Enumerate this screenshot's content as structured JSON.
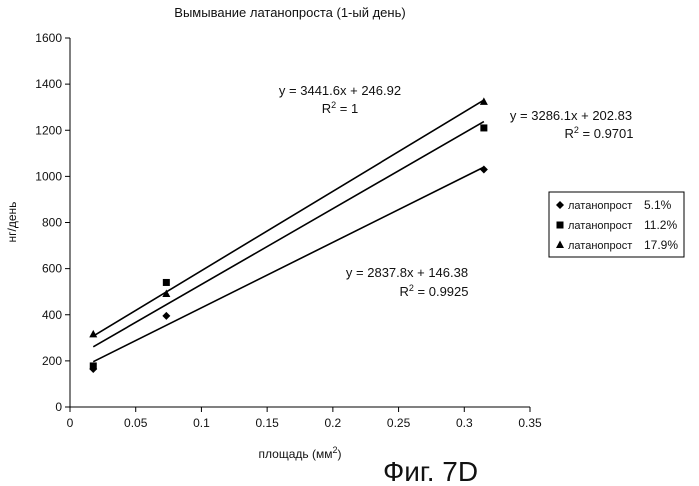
{
  "figure_label": "Фиг. 7D",
  "chart_data": {
    "type": "scatter",
    "title": "Вымывание латанопроста (1-ый день)",
    "xlabel": "площадь (мм2)",
    "ylabel": "нг/день",
    "xlim": [
      0,
      0.35
    ],
    "ylim": [
      0,
      1600
    ],
    "x_ticks": [
      "0",
      "0.05",
      "0.1",
      "0.15",
      "0.2",
      "0.25",
      "0.3",
      "0.35"
    ],
    "y_ticks": [
      "0",
      "200",
      "400",
      "600",
      "800",
      "1000",
      "1200",
      "1400",
      "1600"
    ],
    "grid": false,
    "legend_position": "right",
    "series": [
      {
        "name": "латанопрост 5.1%",
        "legend_name": "латанопрост",
        "legend_pct": "5.1%",
        "marker": "diamond",
        "x": [
          0.0177,
          0.0733,
          0.3149
        ],
        "y": [
          165,
          395,
          1030
        ],
        "fit": {
          "slope": 2837.8,
          "intercept": 146.38
        },
        "equation": "y = 2837.8x + 146.38",
        "r2": "R2 = 0.9925"
      },
      {
        "name": "латанопрост 11.2%",
        "legend_name": "латанопрост",
        "legend_pct": "11.2%",
        "marker": "square",
        "x": [
          0.0177,
          0.0733,
          0.3149
        ],
        "y": [
          178,
          540,
          1210
        ],
        "fit": {
          "slope": 3286.1,
          "intercept": 202.83
        },
        "equation": "y = 3286.1x + 202.83",
        "r2": "R2 = 0.9701"
      },
      {
        "name": "латанопрост 17.9%",
        "legend_name": "латанопрост",
        "legend_pct": "17.9%",
        "marker": "triangle",
        "x": [
          0.0177,
          0.0733,
          0.3149
        ],
        "y": [
          315,
          490,
          1323
        ],
        "fit": {
          "slope": 3441.6,
          "intercept": 246.92
        },
        "equation": "y = 3441.6x + 246.92",
        "r2": "R2 = 1"
      }
    ]
  }
}
